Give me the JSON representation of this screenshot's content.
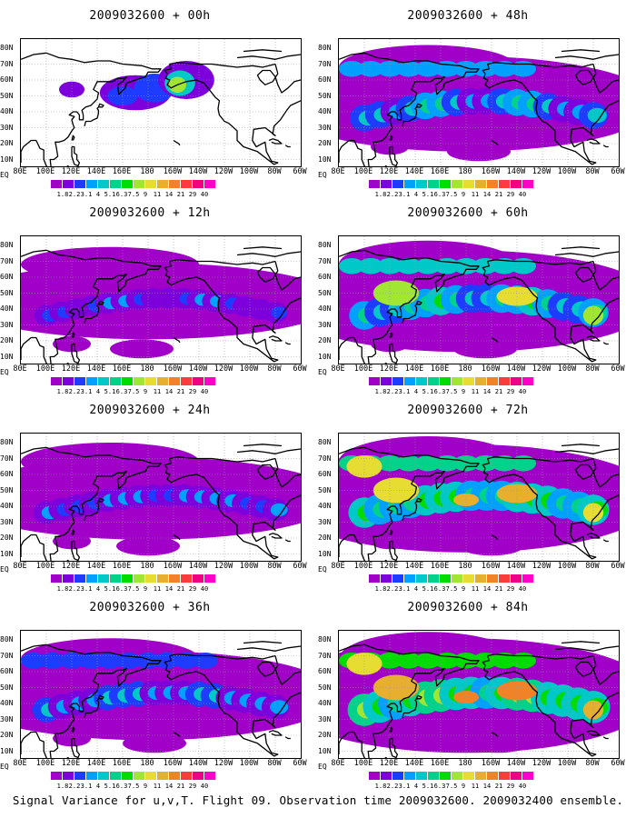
{
  "caption": "Signal Variance for u,v,T. Flight 09. Observation time 2009032600. 2009032400 ensemble.",
  "panels": [
    {
      "title": "2009032600 + 00h",
      "level": 0
    },
    {
      "title": "2009032600 + 48h",
      "level": 4
    },
    {
      "title": "2009032600 + 12h",
      "level": 1
    },
    {
      "title": "2009032600 + 60h",
      "level": 5
    },
    {
      "title": "2009032600 + 24h",
      "level": 2
    },
    {
      "title": "2009032600 + 72h",
      "level": 6
    },
    {
      "title": "2009032600 + 36h",
      "level": 3
    },
    {
      "title": "2009032600 + 84h",
      "level": 7
    }
  ],
  "lat_labels": [
    "80N",
    "70N",
    "60N",
    "50N",
    "40N",
    "30N",
    "20N",
    "10N",
    "EQ"
  ],
  "lon_labels": [
    "80E",
    "100E",
    "120E",
    "140E",
    "160E",
    "180",
    "160W",
    "140W",
    "120W",
    "100W",
    "80W",
    "60W"
  ],
  "colorbar": {
    "values": [
      "1.8",
      "2.2",
      "3.1",
      "4",
      "5.1",
      "6.3",
      "7.5",
      "9",
      "11",
      "14",
      "21",
      "29",
      "40"
    ],
    "colors": [
      "#a000c8",
      "#7d00dc",
      "#1e3cff",
      "#00a0ff",
      "#00c8c8",
      "#00d28c",
      "#00dc00",
      "#a0e632",
      "#e6dc32",
      "#e6af2d",
      "#f08228",
      "#fa3c3c",
      "#f00082",
      "#ff00c8"
    ]
  },
  "map_colors": {
    "coastline": "#000000",
    "grid": "#9a9a9a"
  }
}
